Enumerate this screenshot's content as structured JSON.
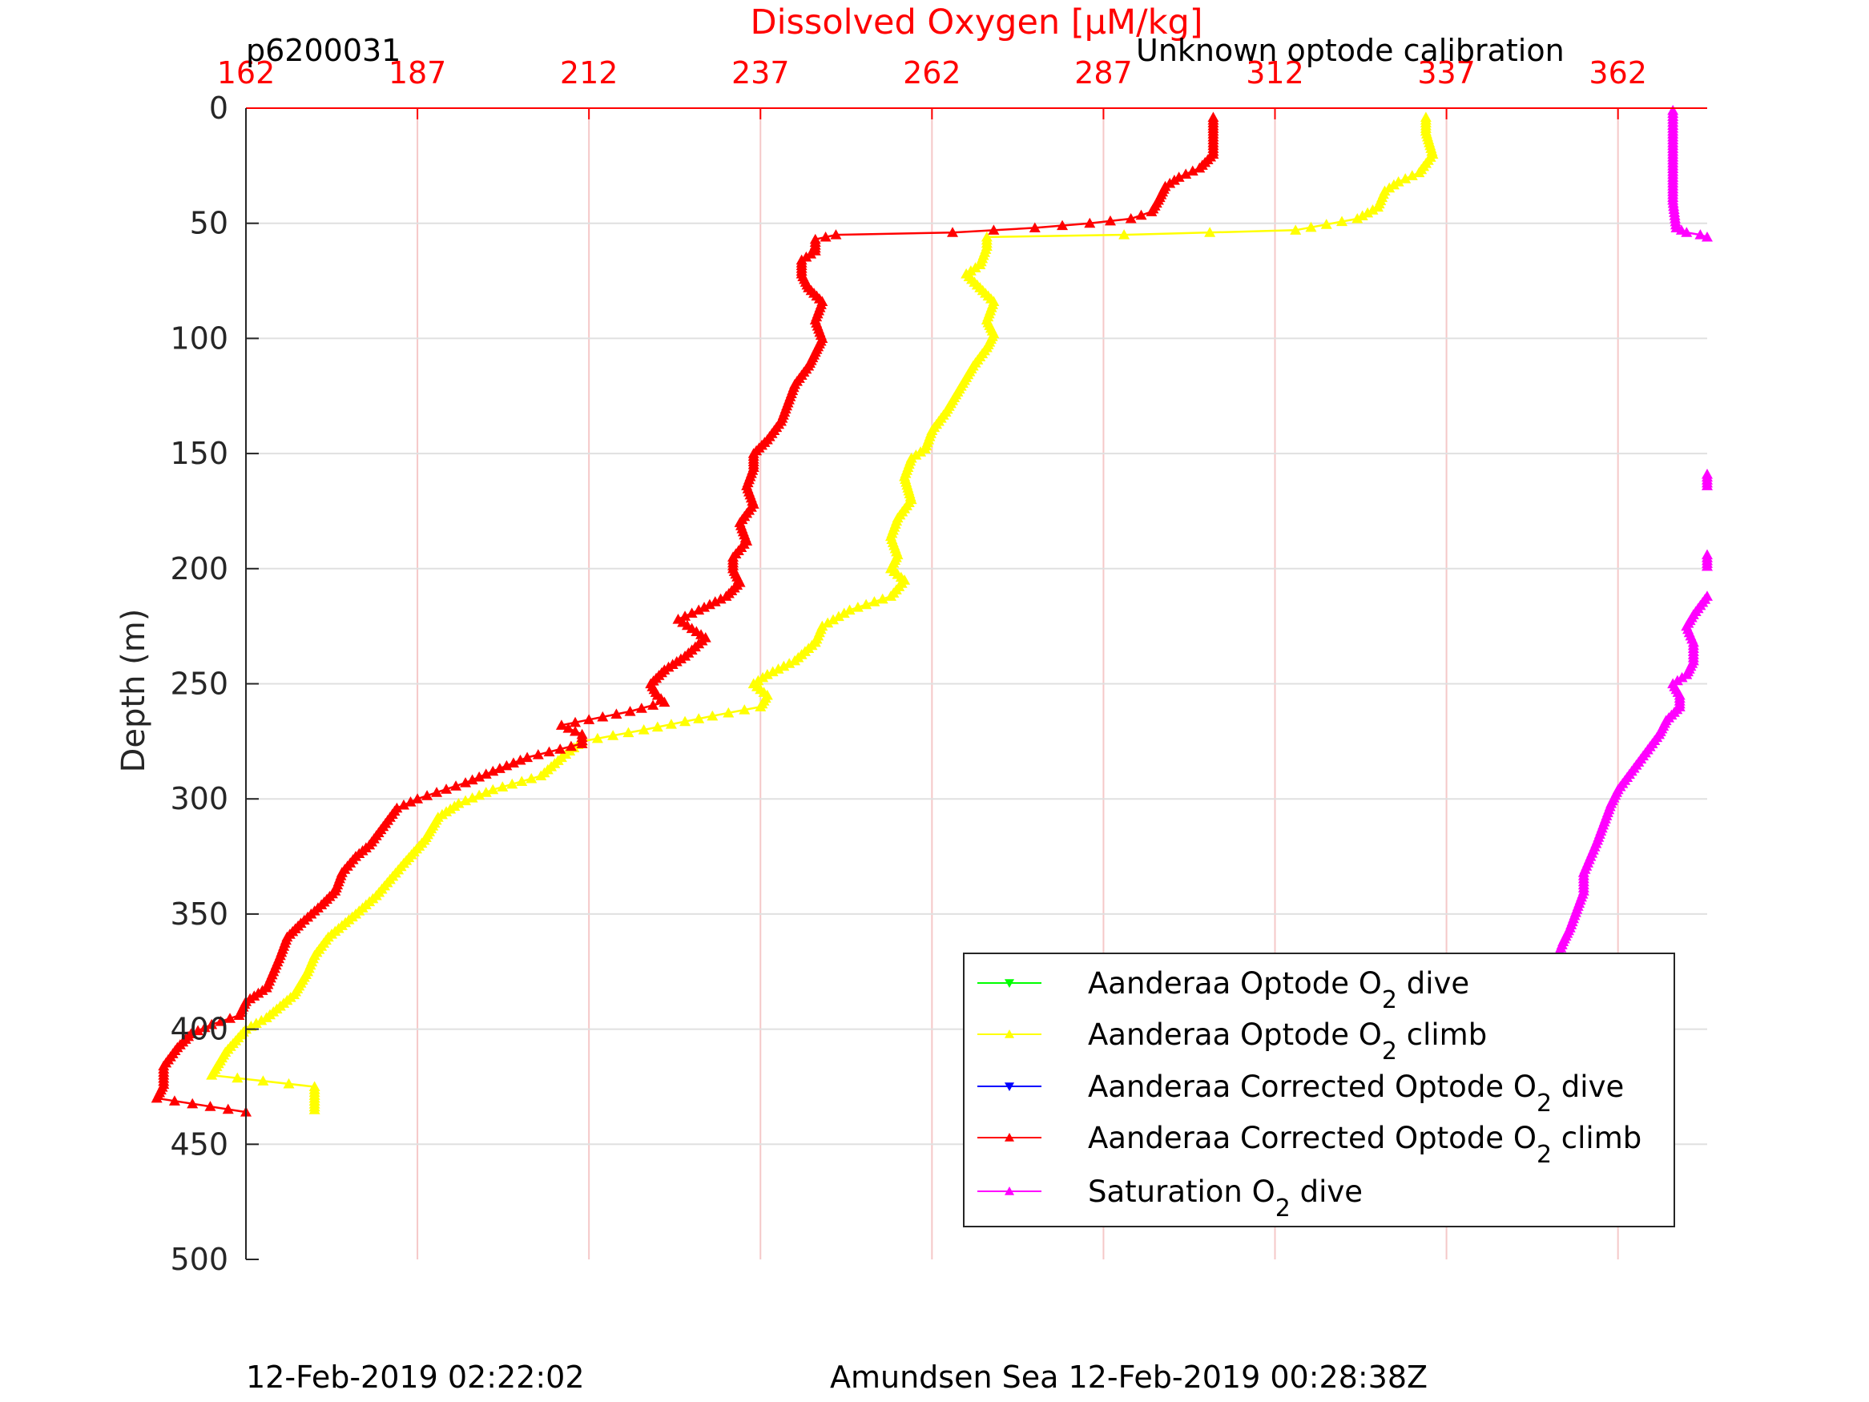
{
  "header": {
    "left_label": "p6200031",
    "right_label": "Unknown optode calibration"
  },
  "footer": {
    "left_text": "12-Feb-2019 02:22:02",
    "right_text": "Amundsen Sea 12-Feb-2019 00:28:38Z"
  },
  "chart_data": {
    "type": "line",
    "title": "",
    "xlabel": "Dissolved Oxygen [μM/kg]",
    "ylabel": "Depth (m)",
    "xlim": [
      162,
      375
    ],
    "ylim": [
      0,
      500
    ],
    "y_reversed": true,
    "x_axis_position": "top",
    "x_ticks": [
      162,
      187,
      212,
      237,
      262,
      287,
      312,
      337,
      362
    ],
    "y_ticks": [
      0,
      50,
      100,
      150,
      200,
      250,
      300,
      350,
      400,
      450,
      500
    ],
    "grid": true,
    "legend_position": "bottom-right",
    "colors": {
      "axis_x": "#ff0000",
      "axis_y": "#262626",
      "grid": "#e0e0e0",
      "xgrid": "#f5c8c8"
    },
    "series": [
      {
        "name": "Aanderaa Optode O2 dive",
        "legend_main": "Aanderaa Optode O",
        "legend_sub": "2",
        "legend_tail": " dive",
        "color": "#00ff00",
        "marker": "down-triangle",
        "points": []
      },
      {
        "name": "Aanderaa Optode O2 climb",
        "legend_main": "Aanderaa Optode O",
        "legend_sub": "2",
        "legend_tail": " climb",
        "color": "#ffff00",
        "marker": "up-triangle",
        "points": [
          [
            334,
            4
          ],
          [
            334,
            10
          ],
          [
            335,
            20
          ],
          [
            333,
            28
          ],
          [
            330,
            32
          ],
          [
            328,
            36
          ],
          [
            327,
            43
          ],
          [
            324,
            48
          ],
          [
            315,
            53
          ],
          [
            290,
            55
          ],
          [
            270,
            56
          ],
          [
            270,
            60
          ],
          [
            269,
            68
          ],
          [
            267,
            72
          ],
          [
            269,
            78
          ],
          [
            271,
            84
          ],
          [
            270,
            92
          ],
          [
            271,
            98
          ],
          [
            270,
            104
          ],
          [
            268,
            112
          ],
          [
            266,
            122
          ],
          [
            264,
            132
          ],
          [
            262,
            140
          ],
          [
            261,
            148
          ],
          [
            259,
            152
          ],
          [
            258,
            160
          ],
          [
            259,
            170
          ],
          [
            257,
            178
          ],
          [
            256,
            186
          ],
          [
            257,
            194
          ],
          [
            256,
            200
          ],
          [
            258,
            205
          ],
          [
            256,
            212
          ],
          [
            250,
            218
          ],
          [
            246,
            225
          ],
          [
            245,
            232
          ],
          [
            242,
            240
          ],
          [
            238,
            246
          ],
          [
            236,
            250
          ],
          [
            238,
            255
          ],
          [
            237,
            260
          ],
          [
            230,
            264
          ],
          [
            220,
            270
          ],
          [
            211,
            275
          ],
          [
            208,
            282
          ],
          [
            205,
            290
          ],
          [
            198,
            296
          ],
          [
            193,
            302
          ],
          [
            190,
            308
          ],
          [
            188,
            318
          ],
          [
            185,
            328
          ],
          [
            183,
            335
          ],
          [
            181,
            342
          ],
          [
            178,
            350
          ],
          [
            176,
            355
          ],
          [
            174,
            360
          ],
          [
            172,
            368
          ],
          [
            171,
            375
          ],
          [
            169,
            385
          ],
          [
            165,
            395
          ],
          [
            162,
            400
          ],
          [
            159,
            410
          ],
          [
            157,
            420
          ],
          [
            172,
            425
          ],
          [
            172,
            430
          ],
          [
            172,
            435
          ]
        ],
        "_note_y_fix": "last climb points at ~172 x are the deep tail"
      },
      {
        "name": "Aanderaa Corrected Optode O2 dive",
        "legend_main": "Aanderaa Corrected Optode O",
        "legend_sub": "2",
        "legend_tail": " dive",
        "color": "#0000ff",
        "marker": "down-triangle",
        "points": []
      },
      {
        "name": "Aanderaa Corrected Optode O2 climb",
        "legend_main": "Aanderaa Corrected Optode O",
        "legend_sub": "2",
        "legend_tail": " climb",
        "color": "#ff0000",
        "marker": "up-triangle",
        "points": [
          [
            303,
            4
          ],
          [
            303,
            10
          ],
          [
            303,
            20
          ],
          [
            301,
            26
          ],
          [
            298,
            30
          ],
          [
            296,
            34
          ],
          [
            295,
            40
          ],
          [
            294,
            45
          ],
          [
            291,
            48
          ],
          [
            285,
            50
          ],
          [
            277,
            52
          ],
          [
            265,
            54
          ],
          [
            248,
            55
          ],
          [
            245,
            57
          ],
          [
            245,
            62
          ],
          [
            243,
            66
          ],
          [
            243,
            72
          ],
          [
            244,
            78
          ],
          [
            246,
            84
          ],
          [
            245,
            92
          ],
          [
            246,
            100
          ],
          [
            245,
            106
          ],
          [
            244,
            112
          ],
          [
            242,
            120
          ],
          [
            241,
            128
          ],
          [
            240,
            136
          ],
          [
            238,
            144
          ],
          [
            236,
            150
          ],
          [
            236,
            156
          ],
          [
            235,
            164
          ],
          [
            236,
            172
          ],
          [
            234,
            180
          ],
          [
            235,
            188
          ],
          [
            233,
            195
          ],
          [
            233,
            200
          ],
          [
            234,
            206
          ],
          [
            232,
            212
          ],
          [
            228,
            218
          ],
          [
            225,
            222
          ],
          [
            229,
            230
          ],
          [
            226,
            238
          ],
          [
            223,
            244
          ],
          [
            221,
            250
          ],
          [
            222,
            255
          ],
          [
            223,
            258
          ],
          [
            218,
            262
          ],
          [
            208,
            268
          ],
          [
            211,
            272
          ],
          [
            211,
            276
          ],
          [
            203,
            282
          ],
          [
            198,
            288
          ],
          [
            194,
            293
          ],
          [
            187,
            300
          ],
          [
            184,
            304
          ],
          [
            182,
            312
          ],
          [
            180,
            320
          ],
          [
            178,
            325
          ],
          [
            176,
            332
          ],
          [
            175,
            340
          ],
          [
            173,
            346
          ],
          [
            170,
            354
          ],
          [
            168,
            360
          ],
          [
            167,
            368
          ],
          [
            166,
            375
          ],
          [
            165,
            382
          ],
          [
            162,
            388
          ],
          [
            161,
            394
          ],
          [
            157,
            398
          ],
          [
            154,
            402
          ],
          [
            152,
            408
          ],
          [
            150,
            416
          ],
          [
            150,
            424
          ],
          [
            149,
            430
          ],
          [
            162,
            436
          ]
        ]
      },
      {
        "name": "Saturation O2 dive",
        "legend_main": "Saturation O",
        "legend_sub": "2",
        "legend_tail": " dive",
        "color": "#ff00ff",
        "marker": "up-triangle",
        "segments": [
          [
            [
              370,
              1
            ],
            [
              370,
              10
            ],
            [
              370,
              25
            ],
            [
              370,
              40
            ],
            [
              370.5,
              52
            ],
            [
              372,
              54
            ],
            [
              374,
              55
            ],
            [
              375,
              56
            ]
          ],
          [
            [
              375,
              159
            ],
            [
              375,
              164
            ]
          ],
          [
            [
              375,
              194
            ],
            [
              375,
              199
            ]
          ],
          [
            [
              375,
              212
            ],
            [
              374,
              216
            ],
            [
              373,
              220
            ],
            [
              372,
              225
            ],
            [
              373,
              232
            ],
            [
              373,
              240
            ],
            [
              372,
              246
            ],
            [
              370,
              250
            ],
            [
              371,
              255
            ],
            [
              371,
              260
            ],
            [
              369,
              266
            ],
            [
              368,
              272
            ],
            [
              366,
              280
            ],
            [
              364,
              288
            ],
            [
              362,
              296
            ],
            [
              361,
              302
            ],
            [
              360,
              310
            ],
            [
              359,
              318
            ],
            [
              358,
              325
            ],
            [
              357,
              332
            ],
            [
              357,
              340
            ],
            [
              356,
              348
            ],
            [
              355,
              356
            ],
            [
              354,
              362
            ],
            [
              353,
              370
            ],
            [
              353,
              378
            ],
            [
              352,
              386
            ],
            [
              351,
              394
            ],
            [
              350,
              402
            ],
            [
              349,
              410
            ],
            [
              349,
              420
            ],
            [
              348,
              430
            ],
            [
              348,
              435
            ]
          ]
        ]
      }
    ]
  }
}
